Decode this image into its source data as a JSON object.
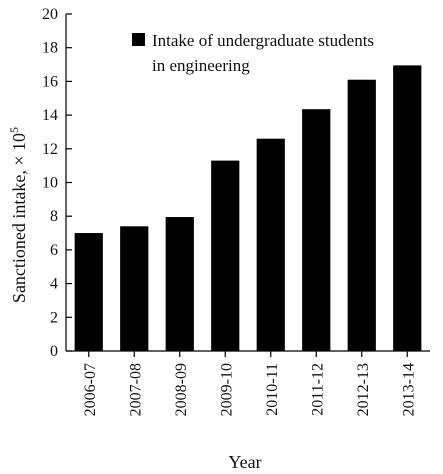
{
  "chart_data": {
    "type": "bar",
    "categories": [
      "2006-07",
      "2007-08",
      "2008-09",
      "2009-10",
      "2010-11",
      "2011-12",
      "2012-13",
      "2013-14"
    ],
    "series": [
      {
        "name": "Intake of undergraduate students in engineering",
        "values": [
          7.0,
          7.4,
          7.95,
          11.3,
          12.6,
          14.35,
          16.1,
          16.95
        ]
      }
    ],
    "legend_lines": [
      "Intake of undergraduate students",
      "in engineering"
    ],
    "xlabel": "Year",
    "ylabel_main": "Sanctioned intake, ",
    "ylabel_multiplier": "× 10",
    "ylabel_exponent": "5",
    "ylim": [
      0,
      20
    ],
    "yticks": [
      "0",
      "2",
      "4",
      "6",
      "8",
      "10",
      "12",
      "14",
      "16",
      "18",
      "20"
    ],
    "legend_position": "top",
    "grid": false,
    "bar_color": "#000000"
  }
}
